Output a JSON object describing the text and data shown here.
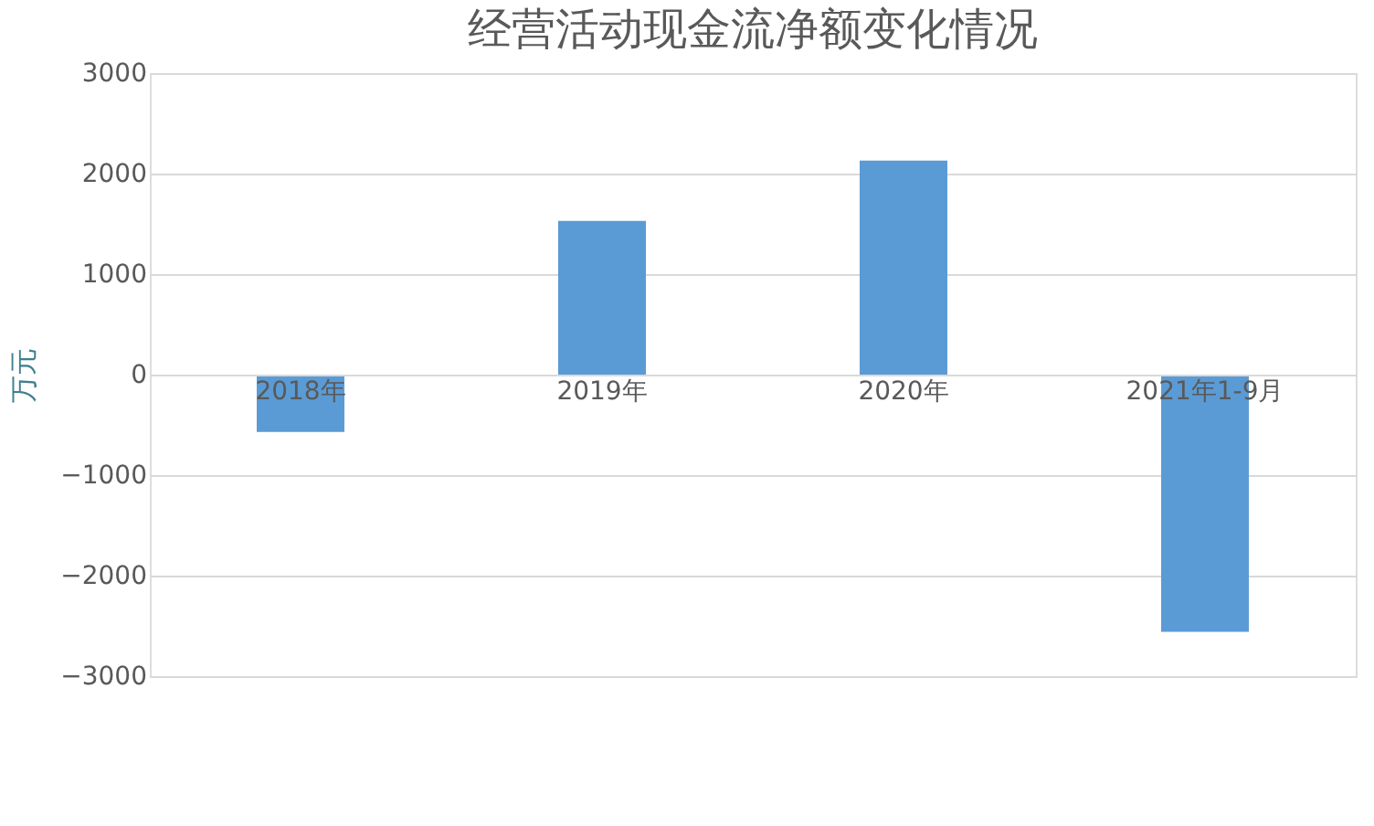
{
  "chart_data": {
    "type": "bar",
    "title": "经营活动现金流净额变化情况",
    "ylabel": "万元",
    "categories": [
      "2018年",
      "2019年",
      "2020年",
      "2021年1-9月"
    ],
    "values": [
      -570,
      1530,
      2130,
      -2560
    ],
    "color": "#5b9bd5",
    "ylim": [
      -3000,
      3000
    ],
    "yticks": [
      -3000,
      -2000,
      -1000,
      0,
      1000,
      2000,
      3000
    ],
    "grid": "y"
  }
}
